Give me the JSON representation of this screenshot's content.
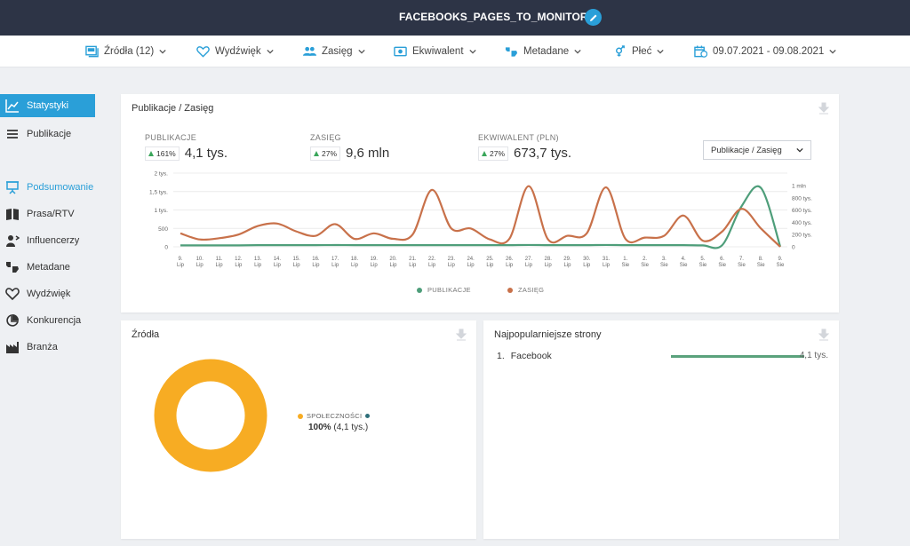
{
  "topbar": {
    "project_name": "FACEBOOKS_PAGES_TO_MONITOR"
  },
  "filters": {
    "sources": "Źródła (12)",
    "sentiment": "Wydźwięk",
    "reach": "Zasięg",
    "equivalent": "Ekwiwalent",
    "metadata": "Metadane",
    "gender": "Płeć",
    "date_range": "09.07.2021 - 09.08.2021"
  },
  "sidebar": {
    "items": [
      {
        "label": "Statystyki",
        "icon": "line-chart-icon"
      },
      {
        "label": "Publikacje",
        "icon": "list-icon"
      },
      {
        "label": "Podsumowanie",
        "icon": "presentation-icon"
      },
      {
        "label": "Prasa/RTV",
        "icon": "book-icon"
      },
      {
        "label": "Influencerzy",
        "icon": "influencer-icon"
      },
      {
        "label": "Metadane",
        "icon": "tag-icon"
      },
      {
        "label": "Wydźwięk",
        "icon": "heart-icon"
      },
      {
        "label": "Konkurencja",
        "icon": "competition-icon"
      },
      {
        "label": "Branża",
        "icon": "factory-icon"
      }
    ]
  },
  "main_card": {
    "title": "Publikacje / Zasięg",
    "metrics": [
      {
        "label": "PUBLIKACJE",
        "change": "161%",
        "value": "4,1 tys."
      },
      {
        "label": "ZASIĘG",
        "change": "27%",
        "value": "9,6 mln"
      },
      {
        "label": "EKWIWALENT (PLN)",
        "change": "27%",
        "value": "673,7 tys."
      }
    ],
    "select_value": "Publikacje / Zasięg"
  },
  "sources_card": {
    "title": "Źródła",
    "legend_label": "SPOŁECZNOŚCI",
    "legend_pct": "100%",
    "legend_value": "(4,1 tys.)"
  },
  "top_pages_card": {
    "title": "Najpopularniejsze strony",
    "items": [
      {
        "rank": "1.",
        "name": "Facebook",
        "value": "4,1 tys."
      }
    ]
  },
  "colors": {
    "accent": "#2a9fd8",
    "topbar": "#2d3446",
    "publikacje": "#4e9e7a",
    "zasieg": "#c8714a",
    "pie": "#f7ac23"
  },
  "chart_data": [
    {
      "type": "line",
      "categories": [
        "9. Lip",
        "10. Lip",
        "11. Lip",
        "12. Lip",
        "13. Lip",
        "14. Lip",
        "15. Lip",
        "16. Lip",
        "17. Lip",
        "18. Lip",
        "19. Lip",
        "20. Lip",
        "21. Lip",
        "22. Lip",
        "23. Lip",
        "24. Lip",
        "25. Lip",
        "26. Lip",
        "27. Lip",
        "28. Lip",
        "29. Lip",
        "30. Lip",
        "31. Lip",
        "1. Sie",
        "2. Sie",
        "3. Sie",
        "4. Sie",
        "5. Sie",
        "6. Sie",
        "7. Sie",
        "8. Sie",
        "9. Sie"
      ],
      "y_left": {
        "ticks": [
          "0",
          "500",
          "1 tys.",
          "1,5 tys.",
          "2 tys."
        ],
        "ylim": [
          0,
          2000
        ]
      },
      "y_right": {
        "ticks": [
          "0",
          "200 tys.",
          "400 tys.",
          "600 tys.",
          "800 tys.",
          "1 mln"
        ],
        "ylim": [
          0,
          1000000
        ]
      },
      "series": [
        {
          "name": "PUBLIKACJE",
          "axis": "left",
          "values": [
            40,
            40,
            40,
            40,
            45,
            45,
            45,
            45,
            48,
            45,
            45,
            45,
            45,
            45,
            45,
            45,
            45,
            45,
            50,
            45,
            45,
            45,
            50,
            45,
            45,
            45,
            45,
            40,
            45,
            1100,
            1600,
            5
          ]
        },
        {
          "name": "ZASIĘG",
          "axis": "right",
          "values": [
            220,
            120,
            140,
            200,
            340,
            380,
            250,
            180,
            370,
            130,
            220,
            130,
            200,
            930,
            300,
            300,
            120,
            130,
            990,
            120,
            180,
            220,
            970,
            130,
            150,
            180,
            510,
            100,
            250,
            620,
            300,
            0
          ]
        }
      ]
    },
    {
      "type": "pie",
      "labels": [
        "SPOŁECZNOŚCI"
      ],
      "values": [
        100
      ]
    }
  ]
}
